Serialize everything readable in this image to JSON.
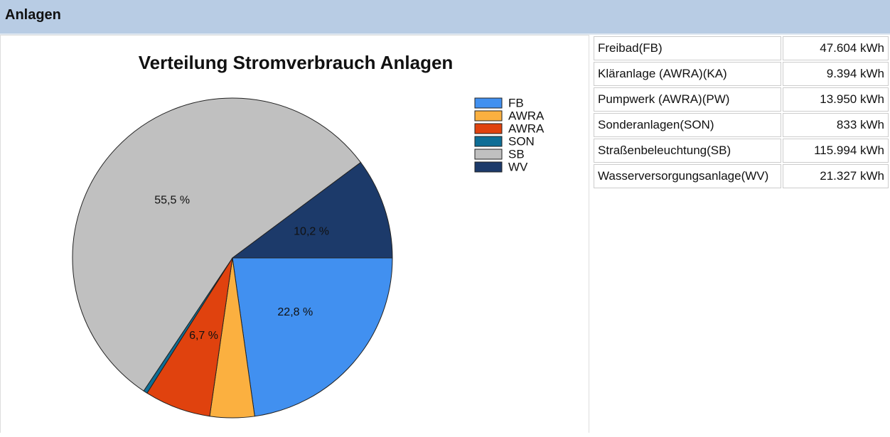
{
  "header": {
    "title": "Anlagen"
  },
  "chart_data": {
    "type": "pie",
    "title": "Verteilung Stromverbrauch Anlagen",
    "categories": [
      "FB",
      "AWRA",
      "AWRA",
      "SON",
      "SB",
      "WV"
    ],
    "values": [
      22.8,
      4.5,
      6.7,
      0.4,
      55.5,
      10.2
    ],
    "value_labels": [
      "22,8 %",
      null,
      "6,7 %",
      null,
      "55,5 %",
      "10,2 %"
    ],
    "colors": [
      "#4190f0",
      "#fbb040",
      "#e0420e",
      "#0e6e96",
      "#c0c0c0",
      "#1c3a6a"
    ]
  },
  "table": {
    "rows": [
      [
        "Freibad(FB)",
        "47.604 kWh"
      ],
      [
        "Kläranlage (AWRA)(KA)",
        "9.394 kWh"
      ],
      [
        "Pumpwerk (AWRA)(PW)",
        "13.950 kWh"
      ],
      [
        "Sonderanlagen(SON)",
        "833 kWh"
      ],
      [
        "Straßenbeleuchtung(SB)",
        "115.994 kWh"
      ],
      [
        "Wasserversorgungsanlage(WV)",
        "21.327 kWh"
      ]
    ]
  }
}
